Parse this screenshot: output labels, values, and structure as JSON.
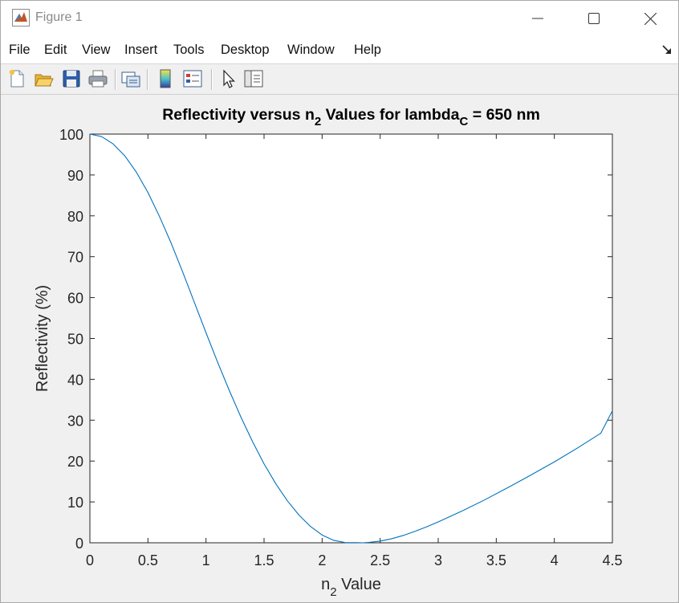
{
  "window": {
    "title": "Figure 1"
  },
  "menu": {
    "items": [
      "File",
      "Edit",
      "View",
      "Insert",
      "Tools",
      "Desktop",
      "Window",
      "Help"
    ]
  },
  "toolbar": {
    "buttons": [
      {
        "name": "new-figure-icon"
      },
      {
        "name": "open-file-icon"
      },
      {
        "name": "save-figure-icon"
      },
      {
        "name": "print-figure-icon"
      },
      {
        "name": "link-plot-icon"
      },
      {
        "name": "insert-colorbar-icon"
      },
      {
        "name": "insert-legend-icon"
      },
      {
        "name": "edit-plot-icon"
      },
      {
        "name": "property-inspector-icon"
      }
    ]
  },
  "chart_data": {
    "type": "line",
    "title_main": "Reflectivity versus n",
    "title_sub": "2",
    "title_mid": " Values for lambda",
    "title_sub2": "C",
    "title_end": " = 650 nm",
    "xlabel_main": "n",
    "xlabel_sub": "2",
    "xlabel_end": " Value",
    "ylabel": "Reflectivity (%)",
    "xlim": [
      0,
      4.5
    ],
    "ylim": [
      0,
      100
    ],
    "xticks": [
      "0",
      "0.5",
      "1",
      "1.5",
      "2",
      "2.5",
      "3",
      "3.5",
      "4",
      "4.5"
    ],
    "yticks": [
      "0",
      "10",
      "20",
      "30",
      "40",
      "50",
      "60",
      "70",
      "80",
      "90",
      "100"
    ],
    "grid": false,
    "line_color": "#0072BD",
    "series": [
      {
        "x": [
          0,
          0.1,
          0.2,
          0.3,
          0.4,
          0.5,
          0.6,
          0.7,
          0.8,
          0.9,
          1.0,
          1.1,
          1.2,
          1.3,
          1.4,
          1.5,
          1.6,
          1.7,
          1.8,
          1.9,
          2.0,
          2.1,
          2.2,
          2.3,
          2.35,
          2.4,
          2.5,
          2.6,
          2.7,
          2.8,
          2.9,
          3.0,
          3.2,
          3.4,
          3.6,
          3.8,
          4.0,
          4.2,
          4.4,
          4.5
        ],
        "y": [
          100,
          99.4,
          97.6,
          94.7,
          90.7,
          85.7,
          79.8,
          73.3,
          66.2,
          58.8,
          51.4,
          44.2,
          37.3,
          30.8,
          24.8,
          19.3,
          14.5,
          10.3,
          6.8,
          4.0,
          1.9,
          0.6,
          0.05,
          0.05,
          0.0,
          0.1,
          0.4,
          1.0,
          1.8,
          2.8,
          3.9,
          5.1,
          7.7,
          10.5,
          13.5,
          16.6,
          19.8,
          23.2,
          26.8,
          32.3
        ]
      }
    ]
  }
}
